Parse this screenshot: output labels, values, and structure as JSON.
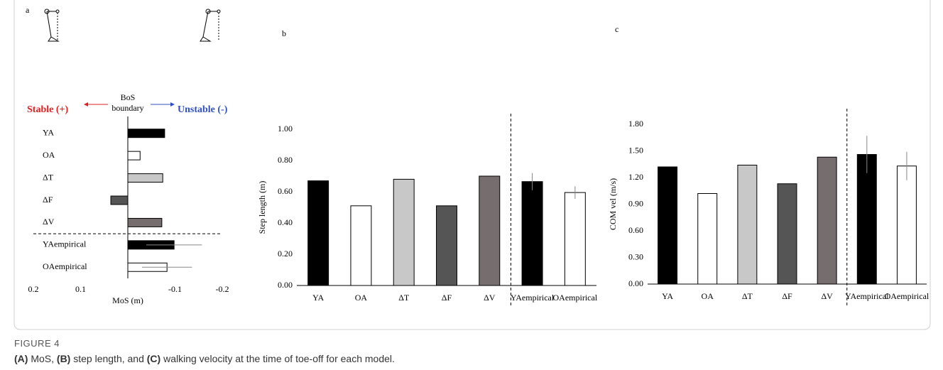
{
  "chart_data": [
    {
      "type": "bar",
      "orientation": "horizontal",
      "panel_label": "a",
      "xlabel": "MoS (m)",
      "annotations": [
        "BoS",
        "boundary",
        "Stable (+)",
        "Unstable (-)"
      ],
      "categories": [
        "YA",
        "OA",
        "ΔT",
        "ΔF",
        "ΔV",
        "YAempirical",
        "OAempirical"
      ],
      "values": [
        -0.078,
        -0.026,
        -0.074,
        0.036,
        -0.072,
        -0.098,
        -0.083
      ],
      "errors": [
        null,
        null,
        null,
        null,
        null,
        0.059,
        0.053
      ],
      "colors": [
        "#000000",
        "#ffffff",
        "#c8c8c8",
        "#555555",
        "#766e6e",
        "#000000",
        "#ffffff"
      ],
      "edgecolor": "#000000",
      "divider_after_index": 4,
      "xlim": [
        0.2,
        -0.2
      ],
      "xticks": [
        0.2,
        0.1,
        -0.1,
        -0.2
      ]
    },
    {
      "type": "bar",
      "orientation": "vertical",
      "panel_label": "b",
      "ylabel": "Step length (m)",
      "categories": [
        "YA",
        "OA",
        "ΔT",
        "ΔF",
        "ΔV",
        "YAempirical",
        "OAempirical"
      ],
      "values": [
        0.67,
        0.51,
        0.68,
        0.51,
        0.7,
        0.665,
        0.595
      ],
      "errors": [
        null,
        null,
        null,
        null,
        null,
        0.055,
        0.04
      ],
      "colors": [
        "#000000",
        "#ffffff",
        "#c8c8c8",
        "#555555",
        "#766e6e",
        "#000000",
        "#ffffff"
      ],
      "edgecolor": "#000000",
      "divider_after_index": 4,
      "ylim": [
        0,
        1.0
      ],
      "yticks": [
        {
          "value": 0,
          "label": "0.00"
        },
        {
          "value": 0.2,
          "label": "0.20"
        },
        {
          "value": 0.4,
          "label": "0.40"
        },
        {
          "value": 0.6,
          "label": "0.60"
        },
        {
          "value": 0.8,
          "label": "0.80"
        },
        {
          "value": 1.0,
          "label": "1.00"
        }
      ]
    },
    {
      "type": "bar",
      "orientation": "vertical",
      "panel_label": "c",
      "ylabel": "COM vel (m/s)",
      "categories": [
        "YA",
        "OA",
        "ΔT",
        "ΔF",
        "ΔV",
        "YAempirical",
        "OAempirical"
      ],
      "values": [
        1.32,
        1.02,
        1.34,
        1.13,
        1.43,
        1.46,
        1.33
      ],
      "errors": [
        null,
        null,
        null,
        null,
        null,
        0.21,
        0.16
      ],
      "colors": [
        "#000000",
        "#ffffff",
        "#c8c8c8",
        "#555555",
        "#766e6e",
        "#000000",
        "#ffffff"
      ],
      "edgecolor": "#000000",
      "divider_after_index": 4,
      "ylim": [
        0,
        1.8
      ],
      "yticks": [
        {
          "value": 0,
          "label": "0.00"
        },
        {
          "value": 0.3,
          "label": "0.30"
        },
        {
          "value": 0.6,
          "label": "0.60"
        },
        {
          "value": 0.9,
          "label": "0.90"
        },
        {
          "value": 1.2,
          "label": "1.20"
        },
        {
          "value": 1.5,
          "label": "1.50"
        },
        {
          "value": 1.8,
          "label": "1.80"
        }
      ]
    }
  ],
  "figure": {
    "label": "FIGURE 4",
    "caption": [
      "(A)",
      " MoS, ",
      "(B)",
      " step length, and ",
      "(C)",
      " walking velocity at the time of toe-off for each model."
    ]
  }
}
